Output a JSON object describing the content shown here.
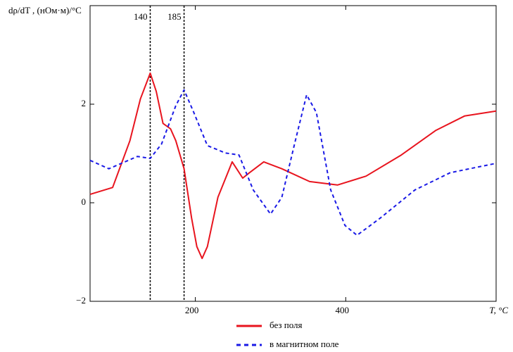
{
  "chart_data": {
    "type": "line",
    "y_label": "dρ/dT , (нОм·м)/°C",
    "x_label": "T, °C",
    "xlim": [
      60,
      600
    ],
    "xticks": [
      200,
      400
    ],
    "ylim": [
      -2,
      4
    ],
    "yticks": [
      {
        "value": -2,
        "label": "−2"
      },
      0,
      2
    ],
    "vlines": [
      140,
      185
    ],
    "x": [
      60,
      90,
      113,
      127,
      140,
      148,
      157,
      167,
      174,
      185,
      195,
      202,
      209,
      216,
      230,
      249,
      263,
      272,
      291,
      315,
      352,
      389,
      427,
      474,
      520,
      558,
      600
    ],
    "series": [
      {
        "name": "без поля",
        "color": "#e8141e",
        "dash": false,
        "x": [
          60,
          90,
          113,
          127,
          140,
          148,
          157,
          167,
          174,
          185,
          195,
          202,
          209,
          216,
          230,
          249,
          263,
          272,
          291,
          315,
          352,
          389,
          427,
          474,
          520,
          558,
          600
        ],
        "values": [
          0.17,
          0.31,
          1.26,
          2.11,
          2.63,
          2.26,
          1.61,
          1.5,
          1.26,
          0.69,
          -0.31,
          -0.89,
          -1.13,
          -0.89,
          0.11,
          0.83,
          0.5,
          0.61,
          0.83,
          0.69,
          0.43,
          0.36,
          0.54,
          0.97,
          1.47,
          1.76,
          1.86
        ]
      },
      {
        "name": "в магнитном поле",
        "color": "#1a1ae6",
        "dash": true,
        "x": [
          60,
          85,
          123,
          140,
          155,
          174,
          185,
          198,
          216,
          240,
          258,
          277,
          300,
          315,
          333,
          348,
          361,
          380,
          399,
          415,
          446,
          492,
          539,
          600
        ],
        "values": [
          0.86,
          0.69,
          0.94,
          0.9,
          1.19,
          1.97,
          2.29,
          1.83,
          1.16,
          1.01,
          0.97,
          0.26,
          -0.23,
          0.11,
          1.26,
          2.19,
          1.83,
          0.26,
          -0.46,
          -0.66,
          -0.31,
          0.26,
          0.61,
          0.8
        ]
      }
    ]
  }
}
